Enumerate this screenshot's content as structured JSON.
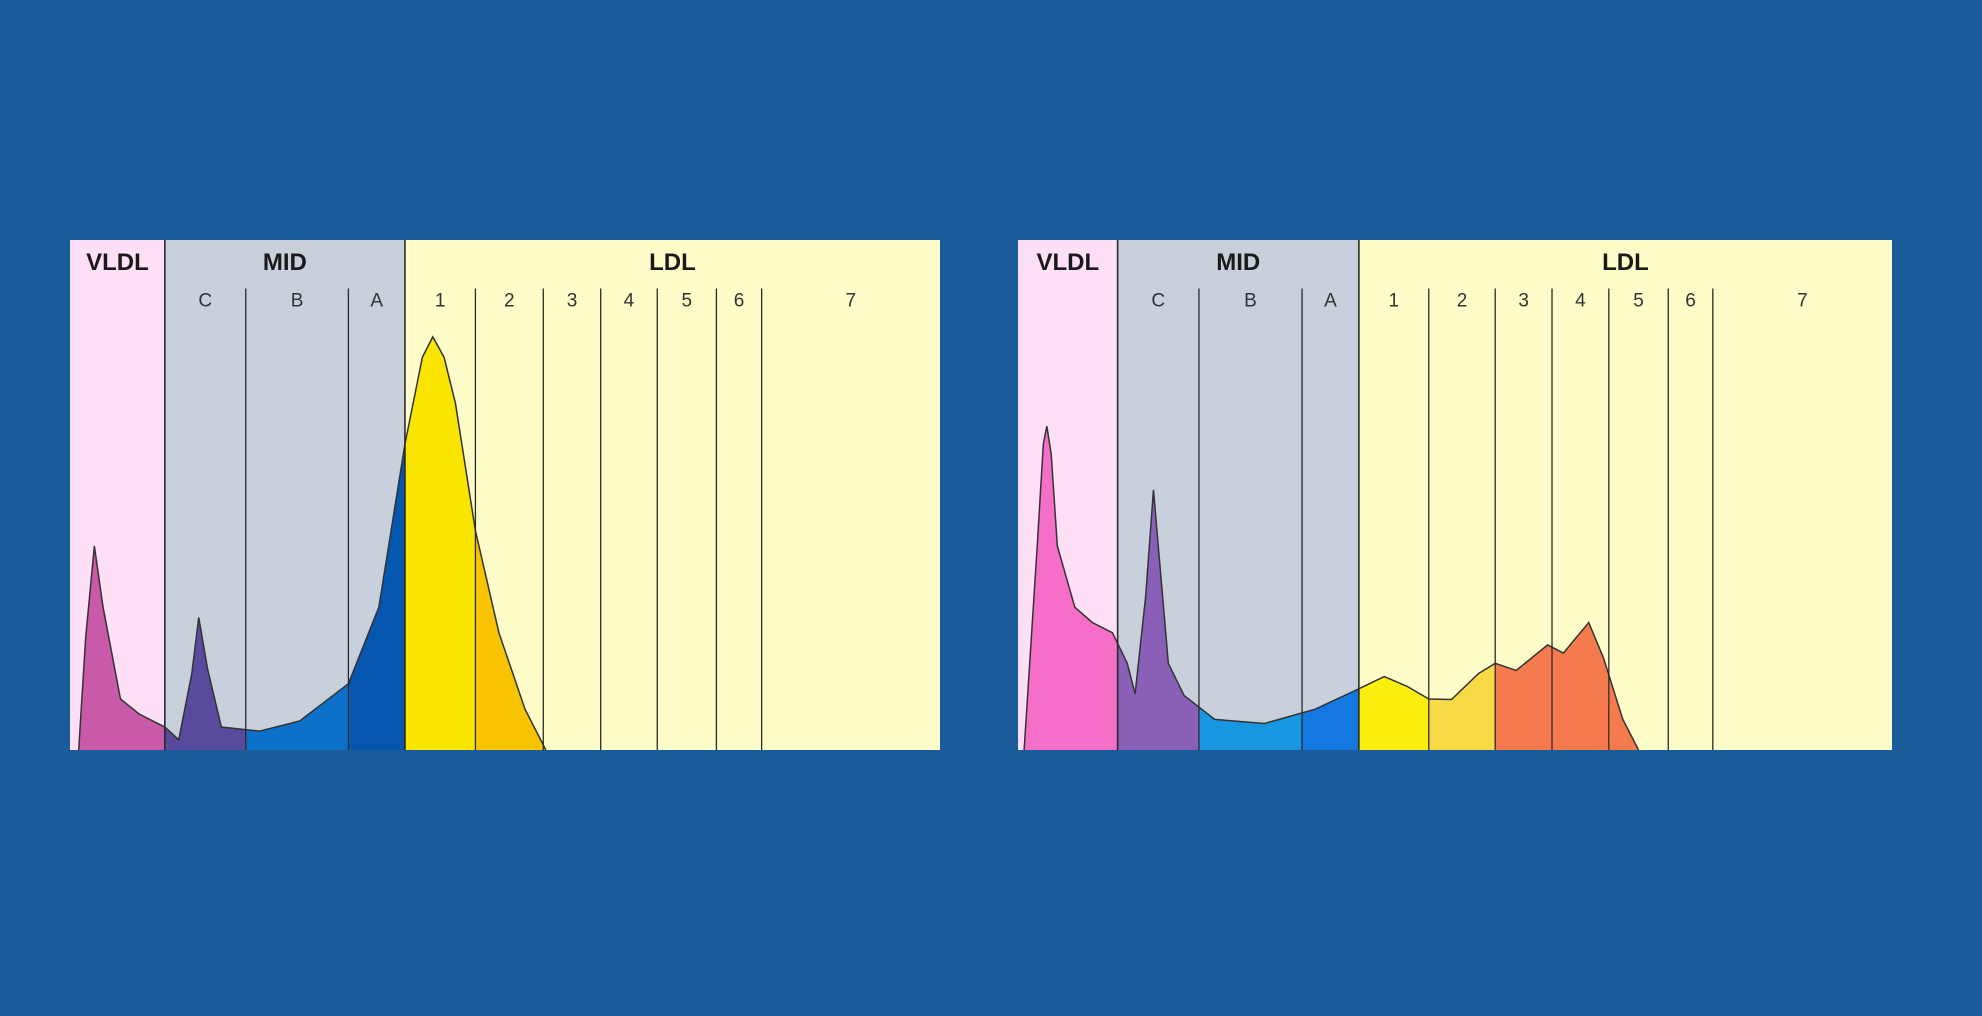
{
  "colors": {
    "background": "#1a5b9a",
    "vldl_bg": "#fde0f5",
    "mid_bg": "#c8d0dc",
    "ldl_bg": "#fefcc8",
    "line": "#2a2a2a"
  },
  "chart_data": [
    {
      "type": "area",
      "title": "",
      "xlabel": "",
      "ylabel": "",
      "xlim": [
        0,
        100
      ],
      "ylim": [
        0,
        100
      ],
      "groups": [
        {
          "label": "VLDL",
          "range": [
            0,
            10.9
          ],
          "color": "#fde0f5"
        },
        {
          "label": "MID",
          "range": [
            10.9,
            38.5
          ],
          "color": "#c8d0dc"
        },
        {
          "label": "LDL",
          "range": [
            38.5,
            100
          ],
          "color": "#fefcc8"
        }
      ],
      "bands": [
        {
          "label": "",
          "range": [
            0,
            10.9
          ],
          "fill": "#c95aa9"
        },
        {
          "label": "C",
          "range": [
            10.9,
            20.2
          ],
          "fill": "#5a4a9e"
        },
        {
          "label": "B",
          "range": [
            20.2,
            32
          ],
          "fill": "#0a70c8"
        },
        {
          "label": "A",
          "range": [
            32,
            38.5
          ],
          "fill": "#0556ae"
        },
        {
          "label": "1",
          "range": [
            38.5,
            46.6
          ],
          "fill": "#f9e500"
        },
        {
          "label": "2",
          "range": [
            46.6,
            54.4
          ],
          "fill": "#f8c300"
        },
        {
          "label": "3",
          "range": [
            54.4,
            61
          ],
          "fill": "#f8c300"
        },
        {
          "label": "4",
          "range": [
            61,
            67.5
          ],
          "fill": "#f8c300"
        },
        {
          "label": "5",
          "range": [
            67.5,
            74.3
          ],
          "fill": "#f8c300"
        },
        {
          "label": "6",
          "range": [
            74.3,
            79.5
          ],
          "fill": "#f8c300"
        },
        {
          "label": "7",
          "range": [
            79.5,
            100
          ],
          "fill": "#f8c300"
        }
      ],
      "x": [
        1,
        1.8,
        2.8,
        3.8,
        5.8,
        8,
        10.9,
        12.5,
        14,
        14.8,
        15.8,
        17.4,
        21.8,
        26.4,
        32,
        35.5,
        38.5,
        40.5,
        41.7,
        43,
        44.3,
        46.6,
        49.3,
        52.3,
        54.7
      ],
      "y": [
        0,
        22,
        40,
        28,
        10,
        7,
        4.5,
        2,
        15,
        26,
        16,
        4.5,
        3.7,
        5.7,
        13,
        28,
        60,
        77,
        81,
        77,
        68,
        43,
        23,
        8,
        0
      ]
    },
    {
      "type": "area",
      "title": "",
      "xlabel": "",
      "ylabel": "",
      "xlim": [
        0,
        100
      ],
      "ylim": [
        0,
        100
      ],
      "groups": [
        {
          "label": "VLDL",
          "range": [
            0,
            11.4
          ],
          "color": "#fde0f5"
        },
        {
          "label": "MID",
          "range": [
            11.4,
            39
          ],
          "color": "#c8d0dc"
        },
        {
          "label": "LDL",
          "range": [
            39,
            100
          ],
          "color": "#fefcc8"
        }
      ],
      "bands": [
        {
          "label": "",
          "range": [
            0,
            11.4
          ],
          "fill": "#f56ec8"
        },
        {
          "label": "C",
          "range": [
            11.4,
            20.7
          ],
          "fill": "#8a5fb8"
        },
        {
          "label": "B",
          "range": [
            20.7,
            32.5
          ],
          "fill": "#1896e0"
        },
        {
          "label": "A",
          "range": [
            32.5,
            39
          ],
          "fill": "#1378e0"
        },
        {
          "label": "1",
          "range": [
            39,
            47
          ],
          "fill": "#fbef10"
        },
        {
          "label": "2",
          "range": [
            47,
            54.6
          ],
          "fill": "#f7da45"
        },
        {
          "label": "3",
          "range": [
            54.6,
            61.1
          ],
          "fill": "#f57a4e"
        },
        {
          "label": "4",
          "range": [
            61.1,
            67.6
          ],
          "fill": "#f57a4e"
        },
        {
          "label": "5",
          "range": [
            67.6,
            74.4
          ],
          "fill": "#f57a4e"
        },
        {
          "label": "6",
          "range": [
            74.4,
            79.5
          ],
          "fill": "#f57a4e"
        },
        {
          "label": "7",
          "range": [
            79.5,
            100
          ],
          "fill": "#f57a4e"
        }
      ],
      "x": [
        0.7,
        2.2,
        2.9,
        3.3,
        3.8,
        4.5,
        6.5,
        8.5,
        10.8,
        12.5,
        13.4,
        14.6,
        15.5,
        16.3,
        17.2,
        19,
        22.5,
        28.2,
        34,
        39,
        41.9,
        44.5,
        47,
        49.6,
        52.7,
        54.6,
        57,
        60.6,
        62.4,
        65.3,
        67,
        69.2,
        71
      ],
      "y": [
        0,
        40,
        60,
        63.5,
        58,
        40,
        28,
        25,
        23,
        17,
        11,
        30,
        51,
        35,
        17,
        10.7,
        6,
        5.2,
        8,
        12,
        14.4,
        12.5,
        10,
        9.9,
        15,
        17,
        15.6,
        20.6,
        19,
        25,
        18,
        6,
        0
      ]
    }
  ]
}
